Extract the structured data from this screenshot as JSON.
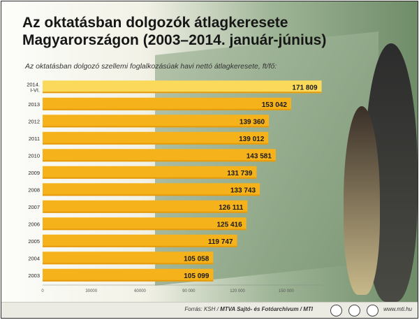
{
  "chart_data": {
    "type": "bar",
    "orientation": "horizontal",
    "title_line1": "Az oktatásban dolgozók átlagkeresete",
    "title_line2": "Magyarországon (2003–2014. január-június)",
    "subtitle": "Az oktatásban dolgozó szellemi foglalkozásúak havi nettó átlagkeresete, ft/fő:",
    "categories": [
      [
        "2014.",
        "I-VI."
      ],
      [
        "2013"
      ],
      [
        "2012"
      ],
      [
        "2011"
      ],
      [
        "2010"
      ],
      [
        "2009"
      ],
      [
        "2008"
      ],
      [
        "2007"
      ],
      [
        "2006"
      ],
      [
        "2005"
      ],
      [
        "2004"
      ],
      [
        "2003"
      ]
    ],
    "values": [
      171809,
      153042,
      139360,
      139012,
      143581,
      131739,
      133743,
      126111,
      125416,
      119747,
      105058,
      105099
    ],
    "value_labels": [
      "171 809",
      "153 042",
      "139 360",
      "139 012",
      "143 581",
      "131 739",
      "133 743",
      "126 111",
      "125 416",
      "119 747",
      "105 058",
      "105 099"
    ],
    "xticks": [
      0,
      30000,
      60000,
      90000,
      120000,
      150000
    ],
    "xtick_labels": [
      "0",
      "30000",
      "60000",
      "90 000",
      "120 000",
      "150 000"
    ],
    "xlim": [
      0,
      172000
    ],
    "colors": {
      "first_bar": "#fbd95a",
      "bar": "#f6b21a",
      "bar_shade": "#e59a0c",
      "label_text": "#1a1a1a"
    }
  },
  "footer": {
    "source_prefix": "Forrás: KSH / ",
    "source_agency": "MTVA Sajtó- és Fotóarchívum / MTI",
    "site": "www.mti.hu"
  }
}
